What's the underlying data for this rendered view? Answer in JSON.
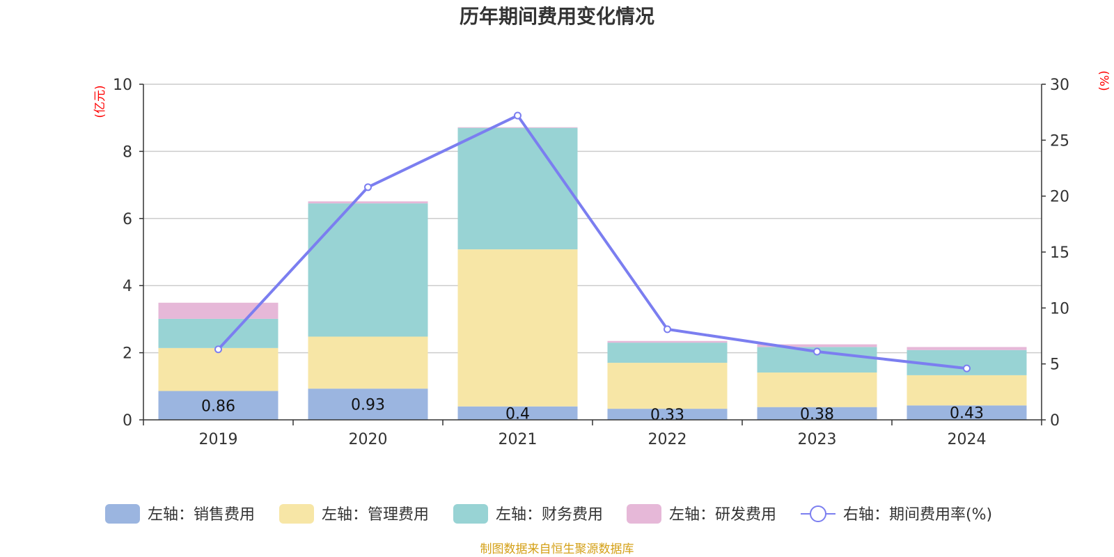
{
  "source_note": "制图数据来自恒生聚源数据库",
  "colors": {
    "sales": "#9bb5e0",
    "admin": "#f7e6a6",
    "finance": "#98d3d4",
    "rd": "#e6b8d8",
    "rate_line": "#7b7ef0",
    "unit_label": "#ff0000",
    "source": "#d4a017"
  },
  "chart_data": {
    "type": "bar",
    "stacked": true,
    "title": "历年期间费用变化情况",
    "categories": [
      "2019",
      "2020",
      "2021",
      "2022",
      "2023",
      "2024"
    ],
    "y_left": {
      "unit": "(亿元)",
      "range": [
        0,
        10
      ],
      "ticks": [
        0,
        2,
        4,
        6,
        8,
        10
      ]
    },
    "y_right": {
      "unit": "(%)",
      "range": [
        0,
        30
      ],
      "ticks": [
        0,
        5,
        10,
        15,
        20,
        25,
        30
      ]
    },
    "grid": true,
    "legend_position": "bottom",
    "series": [
      {
        "name": "左轴：销售费用",
        "key": "sales",
        "type": "bar",
        "axis": "left",
        "values": [
          0.86,
          0.93,
          0.4,
          0.33,
          0.38,
          0.43
        ],
        "labels": [
          "0.86",
          "0.93",
          "0.4",
          "0.33",
          "0.38",
          "0.43"
        ]
      },
      {
        "name": "左轴：管理费用",
        "key": "admin",
        "type": "bar",
        "axis": "left",
        "values": [
          1.28,
          1.55,
          4.68,
          1.37,
          1.03,
          0.9
        ]
      },
      {
        "name": "左轴：财务费用",
        "key": "finance",
        "type": "bar",
        "axis": "left",
        "values": [
          0.87,
          3.97,
          3.62,
          0.6,
          0.76,
          0.75
        ]
      },
      {
        "name": "左轴：研发费用",
        "key": "rd",
        "type": "bar",
        "axis": "left",
        "values": [
          0.48,
          0.06,
          0.02,
          0.05,
          0.08,
          0.09
        ]
      },
      {
        "name": "右轴：期间费用率(%)",
        "key": "rate_line",
        "type": "line",
        "axis": "right",
        "values": [
          6.3,
          20.8,
          27.2,
          8.1,
          6.1,
          4.6
        ]
      }
    ]
  }
}
